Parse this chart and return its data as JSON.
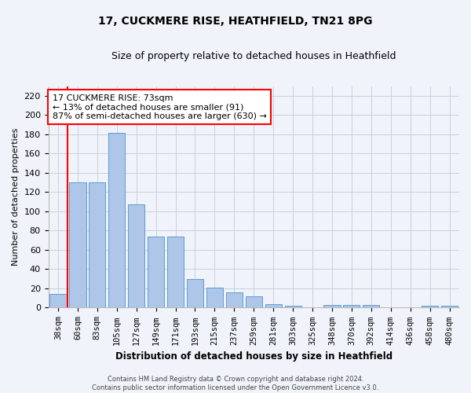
{
  "title": "17, CUCKMERE RISE, HEATHFIELD, TN21 8PG",
  "subtitle": "Size of property relative to detached houses in Heathfield",
  "xlabel": "Distribution of detached houses by size in Heathfield",
  "ylabel": "Number of detached properties",
  "categories": [
    "38sqm",
    "60sqm",
    "83sqm",
    "105sqm",
    "127sqm",
    "149sqm",
    "171sqm",
    "193sqm",
    "215sqm",
    "237sqm",
    "259sqm",
    "281sqm",
    "303sqm",
    "325sqm",
    "348sqm",
    "370sqm",
    "392sqm",
    "414sqm",
    "436sqm",
    "458sqm",
    "480sqm"
  ],
  "values": [
    14,
    130,
    130,
    182,
    107,
    74,
    74,
    30,
    21,
    16,
    12,
    4,
    2,
    0,
    3,
    3,
    3,
    0,
    0,
    2,
    2
  ],
  "bar_color": "#aec6e8",
  "bar_edge_color": "#5b9bd5",
  "vline_x": 0.5,
  "vline_color": "red",
  "annotation_text": "17 CUCKMERE RISE: 73sqm\n← 13% of detached houses are smaller (91)\n87% of semi-detached houses are larger (630) →",
  "annotation_box_color": "white",
  "annotation_box_edge": "red",
  "ylim": [
    0,
    230
  ],
  "yticks": [
    0,
    20,
    40,
    60,
    80,
    100,
    120,
    140,
    160,
    180,
    200,
    220
  ],
  "footer_line1": "Contains HM Land Registry data © Crown copyright and database right 2024.",
  "footer_line2": "Contains public sector information licensed under the Open Government Licence v3.0.",
  "background_color": "#f0f4fa",
  "grid_color": "#c8d0dc"
}
